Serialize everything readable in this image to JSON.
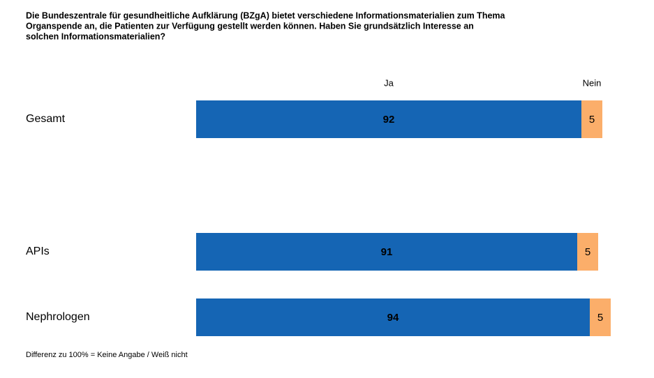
{
  "chart_data": {
    "type": "stacked_barh",
    "title": [
      "Die Bundeszentrale für gesundheitliche Aufklärung (BZgA) bietet verschiedene Informationsmaterialien zum Thema",
      "Organspende an, die Patienten zur Verfügung gestellt werden können. Haben Sie grundsätzlich Interesse an",
      "solchen Informationsmaterialien?"
    ],
    "categories": [
      "Gesamt",
      "APIs",
      "Nephrologen"
    ],
    "series": [
      {
        "name": "Ja",
        "color": "#1565b4",
        "values": [
          92,
          91,
          94
        ]
      },
      {
        "name": "Nein",
        "color": "#fbae6a",
        "values": [
          5,
          5,
          5
        ]
      }
    ],
    "xlim": [
      0,
      99
    ],
    "footnote": "Differenz zu 100% = Keine Angabe / Weiß nicht"
  }
}
